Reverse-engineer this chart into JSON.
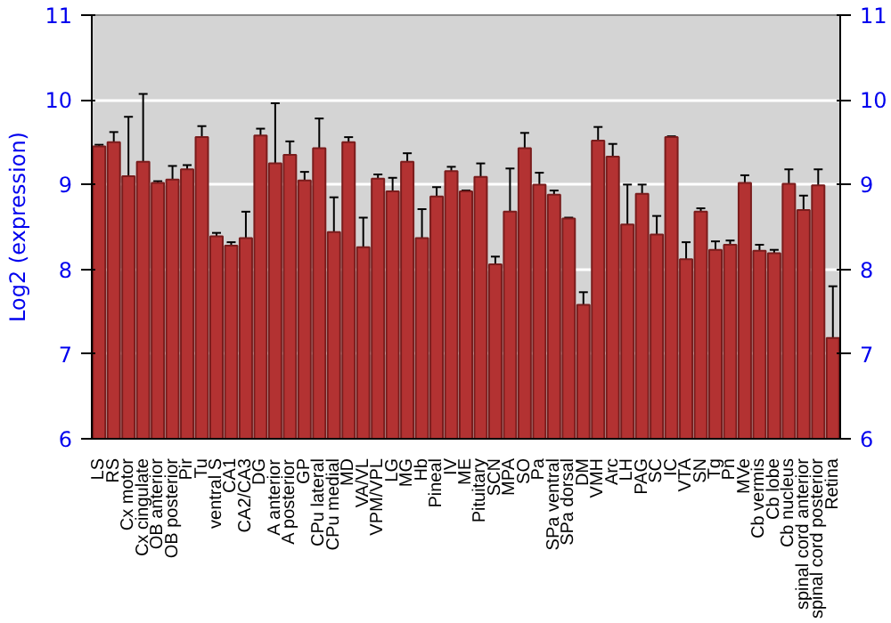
{
  "chart_data": {
    "type": "bar",
    "ylabel": "Log2 (expression)",
    "categories": [
      "LS",
      "RS",
      "Cx motor",
      "Cx cingulate",
      "OB anterior",
      "OB posterior",
      "Pir",
      "Tu",
      "ventral S",
      "CA1",
      "CA2/CA3",
      "DG",
      "A anterior",
      "A posterior",
      "GP",
      "CPu lateral",
      "CPu medial",
      "MD",
      "VA/VL",
      "VPM/VPL",
      "LG",
      "MG",
      "Hb",
      "Pineal",
      "IV",
      "ME",
      "Pituitary",
      "SCN",
      "MPA",
      "SO",
      "Pa",
      "SPa ventral",
      "SPa dorsal",
      "DM",
      "VMH",
      "Arc",
      "LH",
      "PAG",
      "SC",
      "IC",
      "VTA",
      "SN",
      "Tg",
      "Pn",
      "MVe",
      "Cb vermis",
      "Cb lobe",
      "Cb nucleus",
      "spinal cord anterior",
      "spinal cord posterior",
      "Retina"
    ],
    "values": [
      9.45,
      9.5,
      9.1,
      9.27,
      9.02,
      9.06,
      9.18,
      9.56,
      8.39,
      8.28,
      8.37,
      9.58,
      9.25,
      9.35,
      9.05,
      9.43,
      8.44,
      9.5,
      8.26,
      9.07,
      8.92,
      9.27,
      8.37,
      8.86,
      9.16,
      8.92,
      9.09,
      8.06,
      8.68,
      9.43,
      9.0,
      8.88,
      8.6,
      7.58,
      9.52,
      9.33,
      8.53,
      8.89,
      8.41,
      9.56,
      8.12,
      8.68,
      8.23,
      8.29,
      9.02,
      8.22,
      8.19,
      9.01,
      8.7,
      8.99,
      7.19
    ],
    "errors": [
      0.02,
      0.12,
      0.7,
      0.8,
      0.02,
      0.16,
      0.05,
      0.13,
      0.04,
      0.04,
      0.31,
      0.08,
      0.71,
      0.16,
      0.1,
      0.35,
      0.41,
      0.06,
      0.35,
      0.05,
      0.16,
      0.1,
      0.34,
      0.11,
      0.05,
      0.01,
      0.16,
      0.09,
      0.51,
      0.18,
      0.14,
      0.05,
      0.01,
      0.15,
      0.16,
      0.15,
      0.47,
      0.11,
      0.22,
      0.01,
      0.2,
      0.04,
      0.1,
      0.05,
      0.09,
      0.07,
      0.04,
      0.17,
      0.17,
      0.19,
      0.61
    ],
    "color": "#b33232",
    "ylim": [
      6,
      11
    ],
    "yticks": [
      6,
      7,
      8,
      9,
      10,
      11
    ],
    "y2lim": [
      6,
      11
    ],
    "y2ticks": [
      6,
      7,
      8,
      9,
      10,
      11
    ],
    "grid": "y"
  }
}
